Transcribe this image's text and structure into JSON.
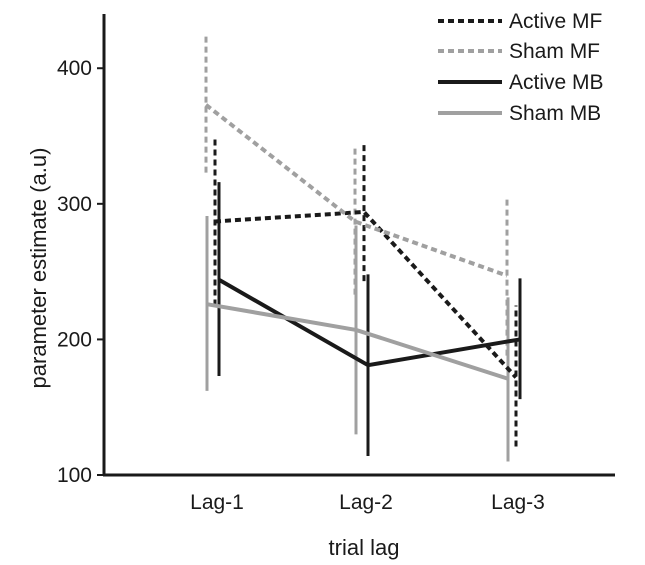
{
  "chart_data": {
    "type": "line",
    "title": "",
    "xlabel": "trial lag",
    "ylabel": "parameter estimate (a.u)",
    "categories": [
      "Lag-1",
      "Lag-2",
      "Lag-3"
    ],
    "ylim": [
      100,
      440
    ],
    "yticks": [
      100,
      200,
      300,
      400
    ],
    "grid": false,
    "legend_position": "top-right",
    "series": [
      {
        "name": "Active MF",
        "color": "#1a1a1a",
        "dash": "dotted",
        "values": [
          287,
          294,
          172
        ],
        "err_low": [
          225,
          243,
          121
        ],
        "err_high": [
          349,
          345,
          225
        ]
      },
      {
        "name": "Sham MF",
        "color": "#a0a0a0",
        "dash": "dotted",
        "values": [
          373,
          287,
          247
        ],
        "err_low": [
          323,
          233,
          188
        ],
        "err_high": [
          426,
          342,
          306
        ]
      },
      {
        "name": "Active MB",
        "color": "#1a1a1a",
        "dash": "solid",
        "values": [
          244,
          181,
          200
        ],
        "err_low": [
          173,
          114,
          156
        ],
        "err_high": [
          316,
          248,
          245
        ]
      },
      {
        "name": "Sham MB",
        "color": "#a0a0a0",
        "dash": "solid",
        "values": [
          226,
          207,
          171
        ],
        "err_low": [
          162,
          130,
          110
        ],
        "err_high": [
          291,
          284,
          231
        ]
      }
    ]
  }
}
